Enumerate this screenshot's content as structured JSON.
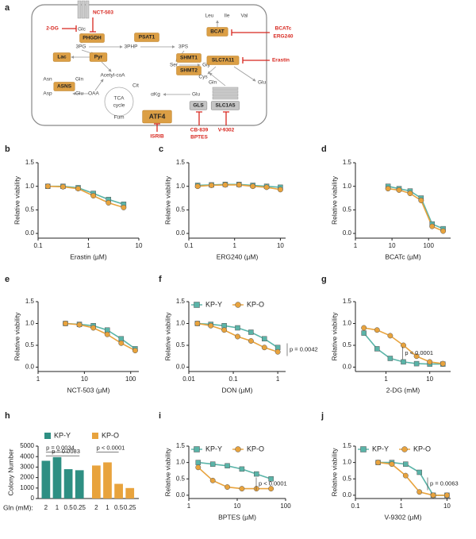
{
  "diagram": {
    "panel": "a",
    "labels": [
      "NCT-503",
      "2-DG",
      "Glc",
      "PHGDH",
      "3PG",
      "3PHP",
      "PSAT1",
      "3PS",
      "SHMT1",
      "SHMT2",
      "Ser",
      "Gly",
      "Lac",
      "Pyr",
      "Acetyl-coA",
      "Asn",
      "Gln",
      "ASNS",
      "Asp",
      "Glu",
      "OAA",
      "Cit",
      "TCA",
      "cycle",
      "Fum",
      "αKg",
      "Glu",
      "Gln",
      "GLS",
      "SLC1A5",
      "ATF4",
      "ISRIB",
      "CB-839",
      "BPTES",
      "V-9302",
      "Leu",
      "Ile",
      "Val",
      "BCAT",
      "BCATc",
      "ERG240",
      "SLC7A11",
      "Erastin",
      "Cys",
      "Glu"
    ]
  },
  "chart_data": [
    {
      "panel": "b",
      "type": "line",
      "xlabel": "Erastin (µM)",
      "ylabel": "Relative viability",
      "xscale": "log",
      "x": [
        0.156,
        0.3125,
        0.625,
        1.25,
        2.5,
        5
      ],
      "xlim": [
        0.1,
        10
      ],
      "xticks": [
        0.1,
        1,
        10
      ],
      "ylim": [
        -0.1,
        1.5
      ],
      "yticks": [
        {
          "value": 0,
          "label": "0.0"
        },
        0.5,
        {
          "value": 1,
          "label": "1.0"
        },
        1.5
      ],
      "series": [
        {
          "color": "#5ab4a8",
          "marker": "square",
          "values": [
            1.0,
            1.0,
            0.97,
            0.85,
            0.72,
            0.62
          ]
        },
        {
          "color": "#e8a33d",
          "marker": "circle",
          "values": [
            1.0,
            0.99,
            0.95,
            0.8,
            0.65,
            0.55
          ]
        }
      ]
    },
    {
      "panel": "c",
      "type": "line",
      "xlabel": "ERG240 (µM)",
      "ylabel": "Relative viability",
      "xscale": "log",
      "x": [
        0.156,
        0.3125,
        0.625,
        1.25,
        2.5,
        5,
        10
      ],
      "xlim": [
        0.1,
        13
      ],
      "xticks": [
        0.1,
        1,
        10
      ],
      "ylim": [
        -0.1,
        1.5
      ],
      "yticks": [
        {
          "value": 0,
          "label": "0.0"
        },
        0.5,
        {
          "value": 1,
          "label": "1.0"
        },
        1.5
      ],
      "series": [
        {
          "color": "#5ab4a8",
          "marker": "square",
          "values": [
            1.02,
            1.03,
            1.04,
            1.04,
            1.02,
            1.0,
            0.98
          ]
        },
        {
          "color": "#e8a33d",
          "marker": "circle",
          "values": [
            1.0,
            1.02,
            1.03,
            1.03,
            1.0,
            0.98,
            0.93
          ]
        }
      ]
    },
    {
      "panel": "d",
      "type": "line",
      "xlabel": "BCATc (µM)",
      "ylabel": "Relative viability",
      "xscale": "log",
      "x": [
        7.8,
        15.6,
        31.25,
        62.5,
        125,
        250
      ],
      "xlim": [
        1,
        400
      ],
      "xticks": [
        1,
        10,
        100
      ],
      "ylim": [
        -0.1,
        1.5
      ],
      "yticks": [
        {
          "value": 0,
          "label": "0.0"
        },
        0.5,
        {
          "value": 1,
          "label": "1.0"
        },
        1.5
      ],
      "series": [
        {
          "color": "#5ab4a8",
          "marker": "square",
          "values": [
            1.0,
            0.95,
            0.9,
            0.75,
            0.2,
            0.1
          ]
        },
        {
          "color": "#e8a33d",
          "marker": "circle",
          "values": [
            0.95,
            0.92,
            0.85,
            0.7,
            0.15,
            0.05
          ]
        }
      ]
    },
    {
      "panel": "e",
      "type": "line",
      "xlabel": "NCT-503 (µM)",
      "ylabel": "Relative viability",
      "xscale": "log",
      "x": [
        3.9,
        7.8,
        15.6,
        31.25,
        62.5,
        125
      ],
      "xlim": [
        1,
        150
      ],
      "xticks": [
        1,
        10,
        100
      ],
      "ylim": [
        -0.1,
        1.5
      ],
      "yticks": [
        {
          "value": 0,
          "label": "0.0"
        },
        0.5,
        {
          "value": 1,
          "label": "1.0"
        },
        1.5
      ],
      "series": [
        {
          "color": "#5ab4a8",
          "marker": "square",
          "values": [
            1.0,
            0.98,
            0.95,
            0.85,
            0.65,
            0.42
          ]
        },
        {
          "color": "#e8a33d",
          "marker": "circle",
          "values": [
            1.0,
            0.97,
            0.9,
            0.75,
            0.55,
            0.38
          ]
        }
      ]
    },
    {
      "panel": "f",
      "type": "line",
      "xlabel": "DON (µM)",
      "ylabel": "Relative viability",
      "xscale": "log",
      "x": [
        0.0156,
        0.03125,
        0.0625,
        0.125,
        0.25,
        0.5,
        1
      ],
      "xlim": [
        0.01,
        1.5
      ],
      "xticks": [
        0.01,
        0.1,
        1
      ],
      "ylim": [
        -0.1,
        1.5
      ],
      "yticks": [
        {
          "value": 0,
          "label": "0.0"
        },
        0.5,
        {
          "value": 1,
          "label": "1.0"
        },
        1.5
      ],
      "legend": "upper left",
      "annotations": [
        "p = 0.0042"
      ],
      "series": [
        {
          "name": "KP-Y",
          "color": "#5ab4a8",
          "marker": "square",
          "values": [
            1.0,
            0.98,
            0.95,
            0.9,
            0.8,
            0.65,
            0.45
          ]
        },
        {
          "name": "KP-O",
          "color": "#e8a33d",
          "marker": "circle",
          "values": [
            1.0,
            0.95,
            0.85,
            0.7,
            0.6,
            0.45,
            0.35
          ]
        }
      ]
    },
    {
      "panel": "g",
      "type": "line",
      "xlabel": "2-DG (mM)",
      "ylabel": "Relative viability",
      "xscale": "log",
      "x": [
        0.3125,
        0.625,
        1.25,
        2.5,
        5,
        10,
        20
      ],
      "xlim": [
        0.2,
        30
      ],
      "xticks": [
        1,
        10
      ],
      "ylim": [
        -0.1,
        1.5
      ],
      "yticks": [
        {
          "value": 0,
          "label": "0.0"
        },
        0.5,
        {
          "value": 1,
          "label": "1.0"
        },
        1.5
      ],
      "annotations": [
        "p < 0.0001"
      ],
      "series": [
        {
          "color": "#5ab4a8",
          "marker": "square",
          "values": [
            0.78,
            0.42,
            0.2,
            0.12,
            0.08,
            0.07,
            0.07
          ]
        },
        {
          "color": "#e8a33d",
          "marker": "circle",
          "values": [
            0.9,
            0.85,
            0.72,
            0.5,
            0.25,
            0.12,
            0.08
          ]
        }
      ]
    },
    {
      "panel": "h",
      "type": "bar",
      "xlabel": "Gln (mM):",
      "ylabel": "Colony Number",
      "categories": [
        "2",
        "1",
        "0.5",
        "0.25"
      ],
      "ylim": [
        0,
        5000
      ],
      "yticks": [
        0,
        1000,
        2000,
        3000,
        4000,
        5000
      ],
      "legend": "top",
      "annotations": [
        "p = 0.0034",
        "p = 0.0083",
        "p < 0.0001"
      ],
      "series": [
        {
          "name": "KP-Y",
          "color": "#2e8f83",
          "values": [
            3600,
            3950,
            2800,
            2700
          ]
        },
        {
          "name": "KP-O",
          "color": "#e8a33d",
          "values": [
            3150,
            3450,
            1400,
            1000
          ]
        }
      ]
    },
    {
      "panel": "i",
      "type": "line",
      "xlabel": "BPTES (µM)",
      "ylabel": "Relative viability",
      "xscale": "log",
      "x": [
        1.56,
        3.125,
        6.25,
        12.5,
        25,
        50
      ],
      "xlim": [
        1,
        100
      ],
      "xticks": [
        1,
        10,
        100
      ],
      "ylim": [
        -0.1,
        1.5
      ],
      "yticks": [
        {
          "value": 0,
          "label": "0.0"
        },
        0.5,
        {
          "value": 1,
          "label": "1.0"
        },
        1.5
      ],
      "legend": "upper left",
      "annotations": [
        "p < 0.0001"
      ],
      "series": [
        {
          "name": "KP-Y",
          "color": "#5ab4a8",
          "marker": "square",
          "values": [
            1.0,
            0.95,
            0.9,
            0.8,
            0.65,
            0.5
          ]
        },
        {
          "name": "KP-O",
          "color": "#e8a33d",
          "marker": "circle",
          "values": [
            0.85,
            0.45,
            0.25,
            0.2,
            0.2,
            0.2
          ]
        }
      ]
    },
    {
      "panel": "j",
      "type": "line",
      "xlabel": "V-9302 (µM)",
      "ylabel": "Relative viability",
      "xscale": "log",
      "x": [
        0.3125,
        0.625,
        1.25,
        2.5,
        5,
        10
      ],
      "xlim": [
        0.1,
        12
      ],
      "xticks": [
        0.1,
        1,
        10
      ],
      "ylim": [
        -0.1,
        1.5
      ],
      "yticks": [
        {
          "value": 0,
          "label": "0.0"
        },
        0.5,
        {
          "value": 1,
          "label": "1.0"
        },
        1.5
      ],
      "legend": "upper left",
      "annotations": [
        "p = 0.0063"
      ],
      "series": [
        {
          "name": "KP-Y",
          "color": "#5ab4a8",
          "marker": "square",
          "values": [
            1.0,
            1.0,
            0.95,
            0.7,
            0.0,
            0.0
          ]
        },
        {
          "name": "KP-O",
          "color": "#e8a33d",
          "marker": "circle",
          "values": [
            1.0,
            0.95,
            0.6,
            0.1,
            0.0,
            0.0
          ]
        }
      ]
    }
  ]
}
